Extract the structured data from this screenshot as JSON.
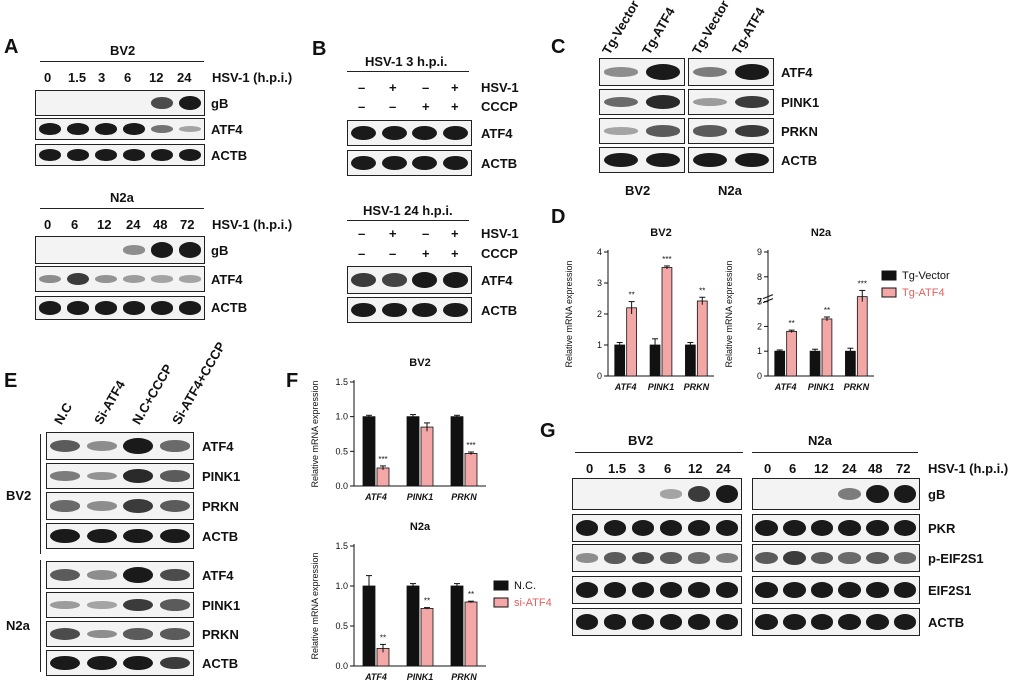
{
  "panels": {
    "A": {
      "label": "A",
      "bv2": {
        "title": "BV2",
        "lanes": [
          "0",
          "1.5",
          "3",
          "6",
          "12",
          "24"
        ],
        "axis": "HSV-1 (h.p.i.)",
        "rows": [
          {
            "label": "gB",
            "bands": [
              0,
              0,
              0,
              0,
              0.7,
              1
            ]
          },
          {
            "label": "ATF4",
            "bands": [
              1,
              1,
              1,
              1,
              0.45,
              0.15
            ]
          },
          {
            "label": "ACTB",
            "bands": [
              1,
              1,
              1,
              1,
              1,
              1
            ]
          }
        ]
      },
      "n2a": {
        "title": "N2a",
        "lanes": [
          "0",
          "6",
          "12",
          "24",
          "48",
          "72"
        ],
        "axis": "HSV-1 (h.p.i.)",
        "rows": [
          {
            "label": "gB",
            "bands": [
              0,
              0,
              0,
              0.3,
              1,
              1
            ]
          },
          {
            "label": "ATF4",
            "bands": [
              0.3,
              0.8,
              0.25,
              0.2,
              0.15,
              0.15
            ]
          },
          {
            "label": "ACTB",
            "bands": [
              1,
              1,
              1,
              1,
              1,
              1
            ]
          }
        ]
      }
    },
    "B": {
      "label": "B",
      "top": {
        "title": "HSV-1 3 h.p.i.",
        "hsv": [
          "–",
          "+",
          "–",
          "+"
        ],
        "cccp": [
          "–",
          "–",
          "+",
          "+"
        ],
        "hsv_label": "HSV-1",
        "cccp_label": "CCCP",
        "rows": [
          {
            "label": "ATF4",
            "bands": [
              1,
              1,
              1,
              1
            ]
          },
          {
            "label": "ACTB",
            "bands": [
              1,
              1,
              1,
              1
            ]
          }
        ]
      },
      "bottom": {
        "title": "HSV-1 24 h.p.i.",
        "hsv": [
          "–",
          "+",
          "–",
          "+"
        ],
        "cccp": [
          "–",
          "–",
          "+",
          "+"
        ],
        "hsv_label": "HSV-1",
        "cccp_label": "CCCP",
        "rows": [
          {
            "label": "ATF4",
            "bands": [
              0.8,
              0.75,
              1,
              1
            ]
          },
          {
            "label": "ACTB",
            "bands": [
              1,
              1,
              1,
              1
            ]
          }
        ]
      }
    },
    "C": {
      "label": "C",
      "lanes": [
        "Tg-Vector",
        "Tg-ATF4",
        "Tg-Vector",
        "Tg-ATF4"
      ],
      "cells": [
        "BV2",
        "N2a"
      ],
      "rows": [
        {
          "label": "ATF4",
          "bands": [
            0.3,
            1,
            0.4,
            1
          ]
        },
        {
          "label": "PINK1",
          "bands": [
            0.5,
            0.9,
            0.2,
            0.8
          ]
        },
        {
          "label": "PRKN",
          "bands": [
            0.15,
            0.6,
            0.6,
            0.8
          ]
        },
        {
          "label": "ACTB",
          "bands": [
            1,
            1,
            1,
            1
          ]
        }
      ]
    },
    "D": {
      "label": "D",
      "legend": [
        "Tg-Vector",
        "Tg-ATF4"
      ]
    },
    "E": {
      "label": "E",
      "lanes": [
        "N.C",
        "Si-ATF4",
        "N.C+CCCP",
        "Si-ATF4+CCCP"
      ],
      "groups": [
        {
          "cell": "BV2",
          "rows": [
            {
              "label": "ATF4",
              "bands": [
                0.6,
                0.3,
                1,
                0.5
              ]
            },
            {
              "label": "PINK1",
              "bands": [
                0.4,
                0.25,
                0.9,
                0.6
              ]
            },
            {
              "label": "PRKN",
              "bands": [
                0.5,
                0.3,
                0.8,
                0.6
              ]
            },
            {
              "label": "ACTB",
              "bands": [
                1,
                1,
                1,
                1
              ]
            }
          ]
        },
        {
          "cell": "N2a",
          "rows": [
            {
              "label": "ATF4",
              "bands": [
                0.6,
                0.3,
                1,
                0.7
              ]
            },
            {
              "label": "PINK1",
              "bands": [
                0.2,
                0.15,
                0.8,
                0.6
              ]
            },
            {
              "label": "PRKN",
              "bands": [
                0.7,
                0.3,
                0.6,
                0.6
              ]
            },
            {
              "label": "ACTB",
              "bands": [
                1,
                1,
                1,
                0.8
              ]
            }
          ]
        }
      ]
    },
    "F": {
      "label": "F",
      "legend": [
        "N.C.",
        "si-ATF4"
      ]
    },
    "G": {
      "label": "G",
      "bv2": {
        "title": "BV2",
        "lanes": [
          "0",
          "1.5",
          "3",
          "6",
          "12",
          "24"
        ]
      },
      "n2a": {
        "title": "N2a",
        "lanes": [
          "0",
          "6",
          "12",
          "24",
          "48",
          "72"
        ]
      },
      "axis": "HSV-1 (h.p.i.)",
      "rows": [
        {
          "label": "gB",
          "bv2": [
            0,
            0,
            0,
            0.15,
            0.8,
            1
          ],
          "n2a": [
            0,
            0,
            0,
            0.4,
            1,
            1
          ]
        },
        {
          "label": "PKR",
          "bv2": [
            1,
            1,
            1,
            1,
            1,
            1
          ],
          "n2a": [
            1,
            1,
            1,
            1,
            1,
            1
          ]
        },
        {
          "label": "p-EIF2S1",
          "bv2": [
            0.3,
            0.6,
            0.7,
            0.6,
            0.5,
            0.4
          ],
          "n2a": [
            0.6,
            0.8,
            0.6,
            0.5,
            0.6,
            0.5
          ]
        },
        {
          "label": "EIF2S1",
          "bv2": [
            1,
            1,
            1,
            1,
            1,
            1
          ],
          "n2a": [
            1,
            1,
            1,
            1,
            1,
            1
          ]
        },
        {
          "label": "ACTB",
          "bv2": [
            1,
            1,
            1,
            1,
            1,
            1
          ],
          "n2a": [
            1,
            1,
            1,
            1,
            1,
            1
          ]
        }
      ]
    }
  },
  "colors": {
    "control": "#111111",
    "treated": "#f4a7a7",
    "treated_text": "#e06060"
  },
  "chart_data": [
    {
      "type": "bar",
      "title": "BV2",
      "ylabel": "Relative mRNA expression",
      "categories": [
        "ATF4",
        "PINK1",
        "PRKN"
      ],
      "ylim": [
        0,
        4
      ],
      "yticks": [
        0,
        1,
        2,
        3,
        4
      ],
      "series": [
        {
          "name": "Tg-Vector",
          "values": [
            1.0,
            1.0,
            1.0
          ],
          "errors": [
            0.08,
            0.2,
            0.08
          ]
        },
        {
          "name": "Tg-ATF4",
          "values": [
            2.2,
            3.5,
            2.42
          ],
          "errors": [
            0.2,
            0.05,
            0.12
          ]
        }
      ],
      "annotations": [
        "**",
        "***",
        "**"
      ]
    },
    {
      "type": "bar",
      "title": "N2a",
      "ylabel": "Relative mRNA expression",
      "categories": [
        "ATF4",
        "PINK1",
        "PRKN"
      ],
      "ylim": [
        0,
        9
      ],
      "axis_break": [
        3,
        7
      ],
      "yticks": [
        0,
        1,
        2,
        3,
        7,
        8,
        9
      ],
      "series": [
        {
          "name": "Tg-Vector",
          "values": [
            1.0,
            1.0,
            1.0
          ],
          "errors": [
            0.05,
            0.08,
            0.12
          ]
        },
        {
          "name": "Tg-ATF4",
          "values": [
            1.8,
            2.3,
            7.2
          ],
          "errors": [
            0.05,
            0.08,
            0.25
          ]
        }
      ],
      "annotations": [
        "**",
        "**",
        "***"
      ]
    },
    {
      "type": "bar",
      "title": "BV2",
      "ylabel": "Relative mRNA expression",
      "categories": [
        "ATF4",
        "PINK1",
        "PRKN"
      ],
      "ylim": [
        0,
        1.5
      ],
      "yticks": [
        0.0,
        0.5,
        1.0,
        1.5
      ],
      "series": [
        {
          "name": "N.C.",
          "values": [
            1.0,
            1.0,
            1.0
          ],
          "errors": [
            0.02,
            0.03,
            0.02
          ]
        },
        {
          "name": "si-ATF4",
          "values": [
            0.26,
            0.85,
            0.47
          ],
          "errors": [
            0.03,
            0.06,
            0.02
          ]
        }
      ],
      "annotations": [
        "***",
        "",
        "***"
      ]
    },
    {
      "type": "bar",
      "title": "N2a",
      "ylabel": "Relative mRNA expression",
      "categories": [
        "ATF4",
        "PINK1",
        "PRKN"
      ],
      "ylim": [
        0,
        1.5
      ],
      "yticks": [
        0.0,
        0.5,
        1.0,
        1.5
      ],
      "series": [
        {
          "name": "N.C.",
          "values": [
            1.0,
            1.0,
            1.0
          ],
          "errors": [
            0.13,
            0.03,
            0.03
          ]
        },
        {
          "name": "si-ATF4",
          "values": [
            0.22,
            0.72,
            0.8
          ],
          "errors": [
            0.05,
            0.01,
            0.01
          ]
        }
      ],
      "annotations": [
        "**",
        "**",
        "**"
      ]
    }
  ]
}
